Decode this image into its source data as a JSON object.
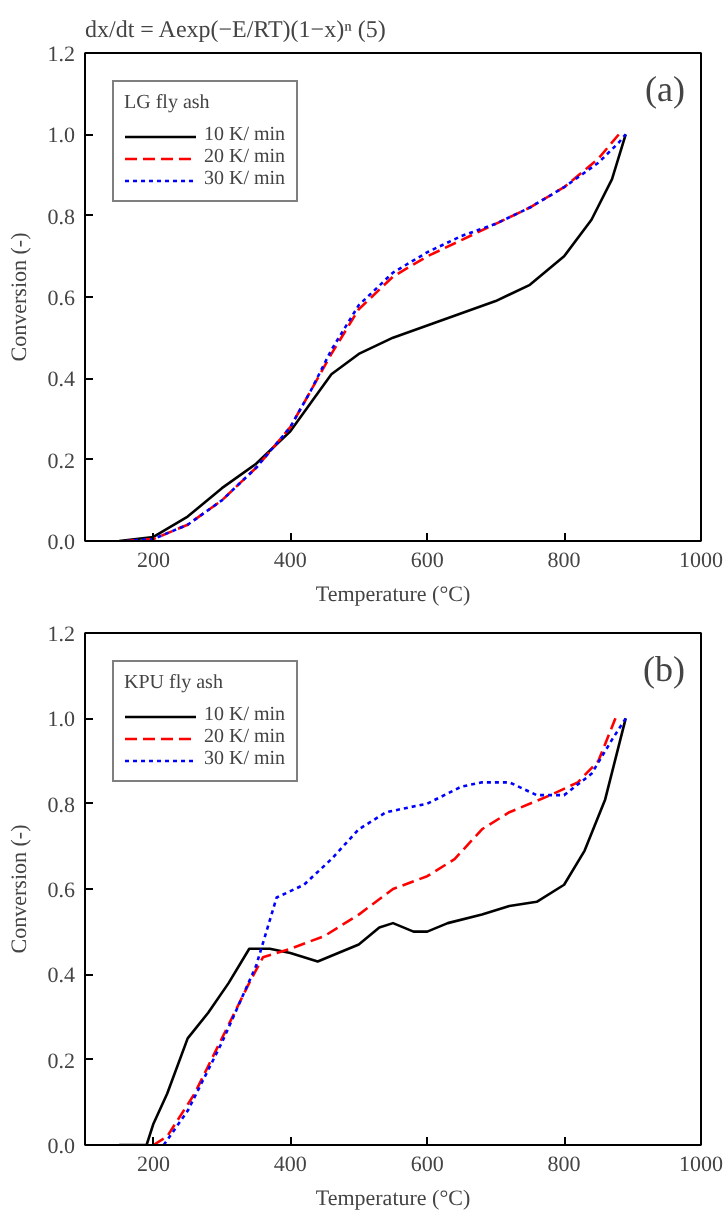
{
  "chart_data": [
    {
      "type": "line",
      "xlabel": "Temperature (°C)",
      "ylabel": "Conversion (-)",
      "legend_title": "LG fly ash",
      "legend": "top left",
      "annotations": [
        "dx/dt = Aexp(−E/RT)(1−x)ⁿ     (5)",
        "(a)"
      ],
      "xlim": [
        100,
        1000
      ],
      "xticks": [
        200,
        400,
        600,
        800,
        1000
      ],
      "ylim": [
        0,
        1.2
      ],
      "yticks": [
        {
          "value": 0,
          "label": "0.0"
        },
        {
          "value": 0.2,
          "label": "0.2"
        },
        {
          "value": 0.4,
          "label": "0.4"
        },
        {
          "value": 0.6,
          "label": "0.6"
        },
        {
          "value": 0.8,
          "label": "0.8"
        },
        {
          "value": 1.0,
          "label": "1.0"
        },
        {
          "value": 1.2,
          "label": "1.2"
        }
      ],
      "grid": false,
      "series": [
        {
          "name": "10 K/ min",
          "color": "#000000",
          "line_style": "solid",
          "x": [
            150,
            200,
            250,
            300,
            350,
            400,
            430,
            460,
            500,
            550,
            600,
            650,
            700,
            750,
            800,
            840,
            870,
            890
          ],
          "values": [
            0,
            0.01,
            0.06,
            0.13,
            0.19,
            0.27,
            0.34,
            0.41,
            0.46,
            0.5,
            0.53,
            0.56,
            0.59,
            0.63,
            0.7,
            0.79,
            0.89,
            1.0
          ]
        },
        {
          "name": "20 K/ min",
          "color": "#ff0000",
          "line_style": "dashed",
          "x": [
            160,
            200,
            250,
            300,
            350,
            400,
            430,
            460,
            500,
            550,
            600,
            650,
            700,
            750,
            800,
            850,
            880
          ],
          "values": [
            0,
            0.005,
            0.04,
            0.1,
            0.18,
            0.28,
            0.37,
            0.46,
            0.57,
            0.65,
            0.7,
            0.74,
            0.78,
            0.82,
            0.87,
            0.94,
            1.0
          ]
        },
        {
          "name": "30 K/ min",
          "color": "#0000ff",
          "line_style": "dotted",
          "x": [
            160,
            200,
            250,
            300,
            350,
            400,
            430,
            460,
            500,
            550,
            600,
            650,
            700,
            750,
            800,
            850,
            880,
            890
          ],
          "values": [
            0,
            0.005,
            0.04,
            0.1,
            0.18,
            0.28,
            0.37,
            0.47,
            0.58,
            0.66,
            0.71,
            0.75,
            0.78,
            0.82,
            0.87,
            0.93,
            0.98,
            1.0
          ]
        }
      ]
    },
    {
      "type": "line",
      "xlabel": "Temperature (°C)",
      "ylabel": "Conversion (-)",
      "legend_title": "KPU fly ash",
      "legend": "top left",
      "annotations": [
        "(b)"
      ],
      "xlim": [
        100,
        1000
      ],
      "xticks": [
        200,
        400,
        600,
        800,
        1000
      ],
      "ylim": [
        0,
        1.2
      ],
      "yticks": [
        {
          "value": 0,
          "label": "0.0"
        },
        {
          "value": 0.2,
          "label": "0.2"
        },
        {
          "value": 0.4,
          "label": "0.4"
        },
        {
          "value": 0.6,
          "label": "0.6"
        },
        {
          "value": 0.8,
          "label": "0.8"
        },
        {
          "value": 1.0,
          "label": "1.0"
        },
        {
          "value": 1.2,
          "label": "1.2"
        }
      ],
      "grid": false,
      "series": [
        {
          "name": "10 K/ min",
          "color": "#000000",
          "line_style": "solid",
          "x": [
            150,
            190,
            200,
            220,
            250,
            280,
            310,
            340,
            370,
            400,
            440,
            470,
            500,
            530,
            550,
            580,
            600,
            630,
            680,
            720,
            760,
            800,
            830,
            860,
            890
          ],
          "values": [
            0,
            0,
            0.05,
            0.12,
            0.25,
            0.31,
            0.38,
            0.46,
            0.46,
            0.45,
            0.43,
            0.45,
            0.47,
            0.51,
            0.52,
            0.5,
            0.5,
            0.52,
            0.54,
            0.56,
            0.57,
            0.61,
            0.69,
            0.81,
            1.0
          ]
        },
        {
          "name": "20 K/ min",
          "color": "#ff0000",
          "line_style": "dashed",
          "x": [
            200,
            220,
            260,
            300,
            340,
            360,
            400,
            450,
            500,
            550,
            600,
            640,
            680,
            720,
            780,
            820,
            850,
            875
          ],
          "values": [
            0,
            0.02,
            0.12,
            0.25,
            0.38,
            0.44,
            0.46,
            0.49,
            0.54,
            0.6,
            0.63,
            0.67,
            0.74,
            0.78,
            0.82,
            0.85,
            0.9,
            1.0
          ]
        },
        {
          "name": "30 K/ min",
          "color": "#0000ff",
          "line_style": "dotted",
          "x": [
            215,
            250,
            300,
            350,
            380,
            420,
            460,
            500,
            540,
            600,
            650,
            680,
            720,
            760,
            800,
            840,
            870,
            890
          ],
          "values": [
            0,
            0.08,
            0.24,
            0.42,
            0.58,
            0.61,
            0.67,
            0.74,
            0.78,
            0.8,
            0.84,
            0.85,
            0.85,
            0.82,
            0.82,
            0.87,
            0.95,
            1.0
          ]
        }
      ]
    }
  ]
}
